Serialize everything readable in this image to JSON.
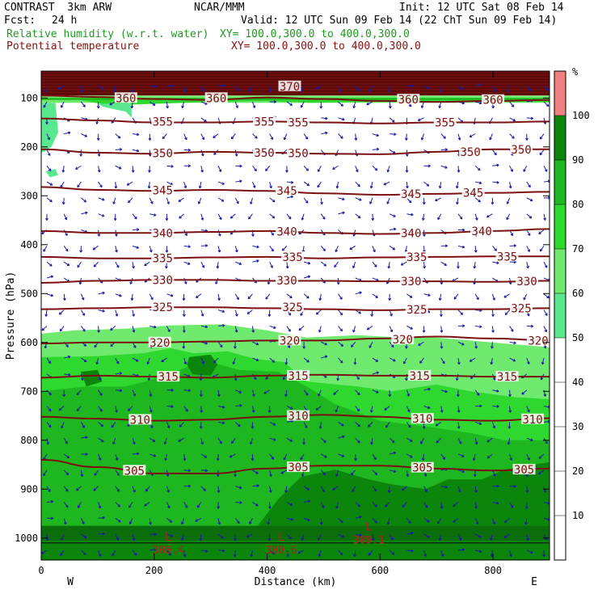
{
  "header": {
    "model": "CONTRAST  3km ARW",
    "center": "NCAR/MMM",
    "init": "Init: 12 UTC Sat 08 Feb 14",
    "fcst_label": "Fcst:",
    "fcst_value": "24 h",
    "valid": "Valid: 12 UTC Sun 09 Feb 14 (22 ChT Sun 09 Feb 14)",
    "rh_title": "Relative humidity (w.r.t. water)",
    "rh_xy": "XY= 100.0,300.0 to 400.0,300.0",
    "theta_title": "Potential temperature",
    "theta_xy": "XY= 100.0,300.0 to 400.0,300.0"
  },
  "colors": {
    "theta": "#7a1010",
    "rh_title": "#1f9a1f",
    "wind": "#1a1aa8"
  },
  "chart_data": {
    "type": "heatmap",
    "xlabel": "Distance (km)",
    "ylabel": "Pressure (hPa)",
    "xlim": [
      0,
      900
    ],
    "ylim": [
      1045,
      45
    ],
    "x_ticks": [
      0,
      200,
      400,
      600,
      800
    ],
    "y_ticks": [
      100,
      200,
      300,
      400,
      500,
      600,
      700,
      800,
      900,
      1000
    ],
    "x_end_labels": {
      "left": "W",
      "right": "E"
    },
    "theta_contours": [
      {
        "value": 360,
        "pressure": [
          95,
          98,
          102,
          104,
          99,
          102,
          106,
          108,
          106,
          104
        ]
      },
      {
        "value": 355,
        "pressure": [
          142,
          146,
          150,
          150,
          148,
          150,
          152,
          150,
          150,
          148
        ]
      },
      {
        "value": 350,
        "pressure": [
          205,
          212,
          214,
          210,
          212,
          214,
          215,
          210,
          205,
          205
        ]
      },
      {
        "value": 345,
        "pressure": [
          282,
          288,
          290,
          288,
          290,
          295,
          298,
          296,
          294,
          292
        ]
      },
      {
        "value": 340,
        "pressure": [
          372,
          376,
          376,
          374,
          372,
          376,
          378,
          376,
          372,
          368
        ]
      },
      {
        "value": 335,
        "pressure": [
          425,
          428,
          428,
          426,
          425,
          428,
          426,
          425,
          424,
          424
        ]
      },
      {
        "value": 330,
        "pressure": [
          478,
          474,
          472,
          472,
          474,
          474,
          475,
          475,
          476,
          474
        ]
      },
      {
        "value": 325,
        "pressure": [
          532,
          530,
          528,
          528,
          530,
          532,
          534,
          532,
          532,
          530
        ]
      },
      {
        "value": 320,
        "pressure": [
          602,
          600,
          600,
          598,
          596,
          596,
          592,
          588,
          592,
          596
        ]
      },
      {
        "value": 315,
        "pressure": [
          672,
          668,
          670,
          672,
          668,
          666,
          668,
          668,
          670,
          670
        ]
      },
      {
        "value": 310,
        "pressure": [
          752,
          756,
          760,
          758,
          752,
          748,
          752,
          758,
          760,
          755
        ]
      },
      {
        "value": 305,
        "pressure": [
          840,
          855,
          868,
          868,
          858,
          852,
          852,
          858,
          862,
          858
        ]
      }
    ],
    "theta_labels": [
      {
        "text": "360",
        "x": 150,
        "p": 100
      },
      {
        "text": "360",
        "x": 310,
        "p": 100
      },
      {
        "text": "370",
        "x": 440,
        "p": 76
      },
      {
        "text": "360",
        "x": 650,
        "p": 103
      },
      {
        "text": "360",
        "x": 800,
        "p": 104
      },
      {
        "text": "355",
        "x": 215,
        "p": 148
      },
      {
        "text": "355",
        "x": 395,
        "p": 148
      },
      {
        "text": "355",
        "x": 455,
        "p": 150
      },
      {
        "text": "355",
        "x": 715,
        "p": 150
      },
      {
        "text": "350",
        "x": 215,
        "p": 213
      },
      {
        "text": "350",
        "x": 395,
        "p": 212
      },
      {
        "text": "350",
        "x": 455,
        "p": 213
      },
      {
        "text": "350",
        "x": 760,
        "p": 210
      },
      {
        "text": "350",
        "x": 850,
        "p": 205
      },
      {
        "text": "345",
        "x": 215,
        "p": 289
      },
      {
        "text": "345",
        "x": 435,
        "p": 290
      },
      {
        "text": "345",
        "x": 655,
        "p": 296
      },
      {
        "text": "345",
        "x": 765,
        "p": 294
      },
      {
        "text": "340",
        "x": 215,
        "p": 376
      },
      {
        "text": "340",
        "x": 435,
        "p": 373
      },
      {
        "text": "340",
        "x": 655,
        "p": 376
      },
      {
        "text": "340",
        "x": 780,
        "p": 372
      },
      {
        "text": "335",
        "x": 215,
        "p": 428
      },
      {
        "text": "335",
        "x": 445,
        "p": 425
      },
      {
        "text": "335",
        "x": 665,
        "p": 425
      },
      {
        "text": "335",
        "x": 825,
        "p": 424
      },
      {
        "text": "330",
        "x": 215,
        "p": 472
      },
      {
        "text": "330",
        "x": 435,
        "p": 473
      },
      {
        "text": "330",
        "x": 655,
        "p": 475
      },
      {
        "text": "330",
        "x": 860,
        "p": 475
      },
      {
        "text": "325",
        "x": 215,
        "p": 528
      },
      {
        "text": "325",
        "x": 445,
        "p": 528
      },
      {
        "text": "325",
        "x": 665,
        "p": 533
      },
      {
        "text": "325",
        "x": 850,
        "p": 530
      },
      {
        "text": "320",
        "x": 210,
        "p": 600
      },
      {
        "text": "320",
        "x": 440,
        "p": 596
      },
      {
        "text": "320",
        "x": 640,
        "p": 594
      },
      {
        "text": "320",
        "x": 880,
        "p": 596
      },
      {
        "text": "315",
        "x": 225,
        "p": 670
      },
      {
        "text": "315",
        "x": 455,
        "p": 668
      },
      {
        "text": "315",
        "x": 670,
        "p": 668
      },
      {
        "text": "315",
        "x": 825,
        "p": 670
      },
      {
        "text": "310",
        "x": 175,
        "p": 758
      },
      {
        "text": "310",
        "x": 455,
        "p": 750
      },
      {
        "text": "310",
        "x": 675,
        "p": 756
      },
      {
        "text": "310",
        "x": 870,
        "p": 757
      },
      {
        "text": "305",
        "x": 165,
        "p": 862
      },
      {
        "text": "305",
        "x": 455,
        "p": 855
      },
      {
        "text": "305",
        "x": 675,
        "p": 856
      },
      {
        "text": "305",
        "x": 855,
        "p": 860
      }
    ],
    "low_markers": [
      {
        "letter": "L",
        "value": "300.4",
        "x": 225,
        "p": 1005
      },
      {
        "letter": "L",
        "value": "300.6",
        "x": 425,
        "p": 1005
      },
      {
        "letter": "L",
        "value": "300.1",
        "x": 580,
        "p": 985
      }
    ],
    "rh_colorbar": {
      "unit": "%",
      "levels": [
        10,
        20,
        30,
        40,
        50,
        60,
        70,
        80,
        90,
        100
      ],
      "bands": [
        {
          "from": 0,
          "to": 50,
          "color": "#ffffff"
        },
        {
          "from": 50,
          "to": 60,
          "color": "#5ae88e"
        },
        {
          "from": 60,
          "to": 70,
          "color": "#6fea6f"
        },
        {
          "from": 70,
          "to": 80,
          "color": "#2ed82e"
        },
        {
          "from": 80,
          "to": 90,
          "color": "#1fb71f"
        },
        {
          "from": 90,
          "to": 100,
          "color": "#0b860b"
        },
        {
          "from": 100,
          "to": 110,
          "color": "#f08080"
        }
      ]
    },
    "rh_regions": [
      {
        "level": 60,
        "poly": [
          [
            0,
            582
          ],
          [
            60,
            575
          ],
          [
            150,
            572
          ],
          [
            230,
            565
          ],
          [
            320,
            563
          ],
          [
            400,
            575
          ],
          [
            470,
            590
          ],
          [
            560,
            585
          ],
          [
            640,
            590
          ],
          [
            700,
            590
          ],
          [
            780,
            598
          ],
          [
            850,
            605
          ],
          [
            900,
            610
          ],
          [
            900,
            1045
          ],
          [
            0,
            1045
          ]
        ]
      },
      {
        "level": 70,
        "poly": [
          [
            0,
            630
          ],
          [
            100,
            628
          ],
          [
            180,
            622
          ],
          [
            230,
            612
          ],
          [
            270,
            622
          ],
          [
            330,
            618
          ],
          [
            380,
            634
          ],
          [
            430,
            640
          ],
          [
            470,
            680
          ],
          [
            560,
            690
          ],
          [
            620,
            700
          ],
          [
            700,
            686
          ],
          [
            760,
            700
          ],
          [
            840,
            712
          ],
          [
            900,
            716
          ],
          [
            900,
            1045
          ],
          [
            0,
            1045
          ]
        ]
      },
      {
        "level": 80,
        "poly": [
          [
            0,
            700
          ],
          [
            80,
            690
          ],
          [
            150,
            690
          ],
          [
            200,
            675
          ],
          [
            260,
            650
          ],
          [
            300,
            640
          ],
          [
            350,
            656
          ],
          [
            420,
            660
          ],
          [
            470,
            690
          ],
          [
            520,
            726
          ],
          [
            600,
            760
          ],
          [
            700,
            775
          ],
          [
            760,
            785
          ],
          [
            820,
            800
          ],
          [
            900,
            800
          ],
          [
            900,
            1045
          ],
          [
            0,
            1045
          ]
        ]
      },
      {
        "level": 90,
        "poly": [
          [
            0,
            980
          ],
          [
            100,
            990
          ],
          [
            200,
            980
          ],
          [
            260,
            978
          ],
          [
            300,
            990
          ],
          [
            380,
            980
          ],
          [
            420,
            920
          ],
          [
            460,
            875
          ],
          [
            520,
            860
          ],
          [
            580,
            880
          ],
          [
            620,
            890
          ],
          [
            680,
            900
          ],
          [
            720,
            880
          ],
          [
            780,
            880
          ],
          [
            820,
            860
          ],
          [
            860,
            852
          ],
          [
            900,
            845
          ],
          [
            900,
            1045
          ],
          [
            0,
            1045
          ]
        ]
      },
      {
        "level": 80,
        "poly": [
          [
            210,
            725
          ],
          [
            240,
            720
          ],
          [
            270,
            738
          ],
          [
            270,
            760
          ],
          [
            230,
            768
          ],
          [
            205,
            750
          ]
        ]
      },
      {
        "level": 90,
        "poly": [
          [
            262,
            630
          ],
          [
            300,
            625
          ],
          [
            312,
            645
          ],
          [
            300,
            668
          ],
          [
            268,
            665
          ],
          [
            258,
            645
          ]
        ]
      },
      {
        "level": 90,
        "poly": [
          [
            70,
            660
          ],
          [
            100,
            656
          ],
          [
            108,
            680
          ],
          [
            80,
            690
          ]
        ]
      }
    ],
    "upper_rh": [
      {
        "level": 100,
        "poly": [
          [
            0,
            45
          ],
          [
            900,
            45
          ],
          [
            900,
            95
          ],
          [
            0,
            95
          ]
        ]
      },
      {
        "level": 60,
        "poly": [
          [
            0,
            95
          ],
          [
            900,
            95
          ],
          [
            900,
            110
          ],
          [
            0,
            110
          ]
        ]
      },
      {
        "level": 70,
        "poly": [
          [
            0,
            102
          ],
          [
            60,
            102
          ],
          [
            120,
            115
          ],
          [
            200,
            112
          ],
          [
            300,
            108
          ],
          [
            400,
            106
          ],
          [
            480,
            110
          ],
          [
            560,
            108
          ],
          [
            700,
            108
          ],
          [
            900,
            108
          ],
          [
            900,
            100
          ],
          [
            0,
            100
          ]
        ]
      },
      {
        "level": 80,
        "poly": [
          [
            0,
            100
          ],
          [
            900,
            100
          ],
          [
            900,
            104
          ],
          [
            0,
            104
          ]
        ]
      },
      {
        "level": 50,
        "poly": [
          [
            0,
            110
          ],
          [
            25,
            110
          ],
          [
            30,
            170
          ],
          [
            18,
            200
          ],
          [
            5,
            210
          ],
          [
            0,
            212
          ]
        ]
      },
      {
        "level": 50,
        "poly": [
          [
            100,
            112
          ],
          [
            160,
            110
          ],
          [
            160,
            140
          ],
          [
            150,
            128
          ],
          [
            110,
            118
          ]
        ]
      },
      {
        "level": 50,
        "poly": [
          [
            8,
            250
          ],
          [
            25,
            245
          ],
          [
            30,
            258
          ],
          [
            15,
            262
          ]
        ]
      }
    ],
    "wind_field": {
      "columns": 30,
      "rows": 30,
      "note": "wind vectors drawn along cross-section"
    }
  }
}
